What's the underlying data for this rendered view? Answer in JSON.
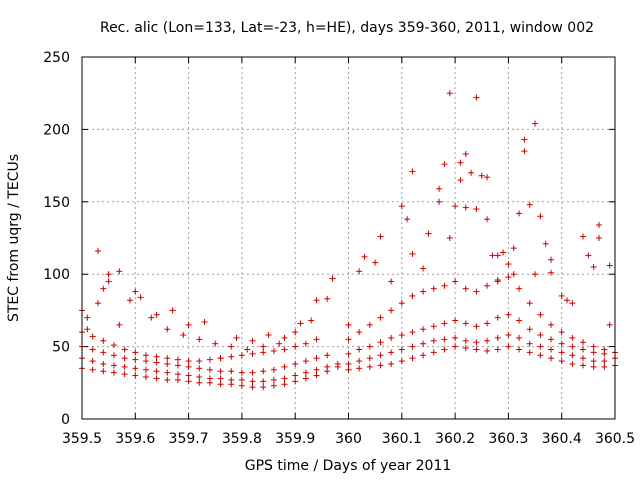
{
  "chart_data": {
    "type": "scatter",
    "title": "Rec. alic (Lon=133, Lat=-23, h=HE), days 359-360, 2011, window 002",
    "xlabel": "GPS time / Days of year 2011",
    "ylabel": "STEC from uqrg / TECUs",
    "xlim": [
      359.5,
      360.5
    ],
    "ylim": [
      0,
      250
    ],
    "xticks": [
      "359.5",
      "359.6",
      "359.7",
      "359.8",
      "359.9",
      "360",
      "360.1",
      "360.2",
      "360.3",
      "360.4",
      "360.5"
    ],
    "yticks": [
      "0",
      "50",
      "100",
      "150",
      "200",
      "250"
    ],
    "grid": true,
    "marker": "+",
    "color": "#cc0000",
    "series": [
      {
        "name": "s1",
        "x": [
          359.5,
          359.52,
          359.54,
          359.56,
          359.58,
          359.6,
          359.62,
          359.64,
          359.66,
          359.68,
          359.7,
          359.72,
          359.74,
          359.76,
          359.78,
          359.8,
          359.82,
          359.84,
          359.86,
          359.88,
          359.9,
          359.92,
          359.94,
          359.96,
          359.98
        ],
        "y": [
          35,
          34,
          33,
          32,
          31,
          30,
          29,
          28,
          27,
          27,
          26,
          25,
          25,
          24,
          24,
          23,
          22,
          22,
          23,
          24,
          26,
          28,
          30,
          33,
          36
        ]
      },
      {
        "name": "s2",
        "x": [
          359.5,
          359.52,
          359.54,
          359.56,
          359.58,
          359.6,
          359.62,
          359.64,
          359.66,
          359.68,
          359.7,
          359.72,
          359.74,
          359.76,
          359.78,
          359.8,
          359.82,
          359.84,
          359.86,
          359.88,
          359.9,
          359.92,
          359.94,
          359.96,
          359.98
        ],
        "y": [
          42,
          40,
          38,
          37,
          36,
          35,
          34,
          33,
          32,
          31,
          30,
          29,
          28,
          28,
          27,
          27,
          26,
          26,
          27,
          28,
          30,
          32,
          34,
          36,
          38
        ]
      },
      {
        "name": "s3",
        "x": [
          359.5,
          359.52,
          359.54,
          359.56,
          359.58,
          359.6,
          359.62,
          359.64,
          359.66,
          359.68,
          359.7,
          359.72,
          359.74,
          359.76,
          359.78,
          359.8,
          359.82,
          359.84,
          359.86,
          359.88,
          359.9,
          359.92,
          359.94,
          359.96
        ],
        "y": [
          50,
          48,
          46,
          44,
          42,
          41,
          40,
          39,
          38,
          37,
          36,
          35,
          34,
          33,
          33,
          32,
          32,
          33,
          34,
          36,
          38,
          40,
          42,
          44
        ]
      },
      {
        "name": "s4",
        "x": [
          359.5,
          359.52,
          359.54,
          359.56,
          359.58,
          359.6,
          359.62,
          359.64,
          359.66,
          359.68,
          359.7,
          359.72,
          359.74,
          359.76,
          359.78,
          359.8,
          359.82,
          359.84,
          359.86,
          359.88,
          359.9,
          359.92,
          359.94
        ],
        "y": [
          60,
          57,
          54,
          51,
          48,
          46,
          44,
          43,
          42,
          41,
          40,
          40,
          41,
          42,
          43,
          44,
          45,
          46,
          47,
          48,
          50,
          52,
          55
        ]
      },
      {
        "name": "s5",
        "x": [
          359.5,
          359.51,
          359.53,
          359.55,
          359.57,
          359.6,
          359.63,
          359.66,
          359.69,
          359.72,
          359.75,
          359.78,
          359.81,
          359.84,
          359.87,
          359.9,
          359.93,
          359.96
        ],
        "y": [
          75,
          70,
          116,
          95,
          102,
          88,
          70,
          62,
          58,
          55,
          52,
          50,
          48,
          50,
          52,
          60,
          68,
          83
        ]
      },
      {
        "name": "s6",
        "x": [
          359.51,
          359.53,
          359.54,
          359.55,
          359.57,
          359.59,
          359.61,
          359.64,
          359.67,
          359.7,
          359.73,
          359.76,
          359.79,
          359.82,
          359.85,
          359.88,
          359.91,
          359.94,
          359.97
        ],
        "y": [
          62,
          80,
          90,
          100,
          65,
          82,
          84,
          72,
          75,
          65,
          67,
          42,
          56,
          54,
          58,
          56,
          66,
          82,
          97
        ]
      },
      {
        "name": "s7",
        "x": [
          360.0,
          360.02,
          360.04,
          360.06,
          360.08,
          360.1,
          360.12,
          360.14,
          360.16,
          360.18,
          360.2,
          360.22,
          360.24,
          360.26,
          360.28,
          360.3,
          360.32,
          360.34,
          360.36,
          360.38,
          360.4,
          360.42,
          360.44,
          360.46,
          360.48,
          360.5
        ],
        "y": [
          34,
          35,
          36,
          37,
          38,
          40,
          42,
          44,
          46,
          48,
          50,
          49,
          48,
          47,
          48,
          50,
          48,
          46,
          44,
          42,
          40,
          38,
          37,
          36,
          36,
          37
        ]
      },
      {
        "name": "s8",
        "x": [
          360.0,
          360.02,
          360.04,
          360.06,
          360.08,
          360.1,
          360.12,
          360.14,
          360.16,
          360.18,
          360.2,
          360.22,
          360.24,
          360.26,
          360.28,
          360.3,
          360.32,
          360.34,
          360.36,
          360.38,
          360.4,
          360.42,
          360.44,
          360.46,
          360.48,
          360.5
        ],
        "y": [
          38,
          40,
          42,
          44,
          46,
          48,
          50,
          52,
          54,
          55,
          56,
          54,
          53,
          54,
          56,
          58,
          56,
          52,
          50,
          48,
          46,
          44,
          42,
          40,
          40,
          42
        ]
      },
      {
        "name": "s9",
        "x": [
          360.0,
          360.02,
          360.04,
          360.06,
          360.08,
          360.1,
          360.12,
          360.14,
          360.16,
          360.18,
          360.2,
          360.22,
          360.24,
          360.26,
          360.28,
          360.3,
          360.32,
          360.34,
          360.36,
          360.38,
          360.4,
          360.42,
          360.44,
          360.46,
          360.48,
          360.5
        ],
        "y": [
          45,
          48,
          50,
          53,
          56,
          58,
          60,
          62,
          64,
          66,
          68,
          66,
          64,
          66,
          70,
          72,
          68,
          62,
          58,
          55,
          52,
          50,
          48,
          46,
          45,
          46
        ]
      },
      {
        "name": "s10",
        "x": [
          360.0,
          360.02,
          360.04,
          360.06,
          360.08,
          360.1,
          360.12,
          360.14,
          360.16,
          360.18,
          360.2,
          360.22,
          360.24,
          360.26,
          360.28,
          360.3,
          360.32,
          360.34,
          360.36,
          360.38,
          360.4,
          360.42,
          360.44,
          360.46,
          360.48
        ],
        "y": [
          55,
          60,
          65,
          70,
          75,
          80,
          85,
          88,
          90,
          92,
          95,
          90,
          88,
          92,
          95,
          98,
          90,
          80,
          72,
          65,
          60,
          56,
          53,
          50,
          48
        ]
      },
      {
        "name": "s11",
        "x": [
          360.0,
          360.02,
          360.03,
          360.05,
          360.06,
          360.08,
          360.1,
          360.11,
          360.12,
          360.14,
          360.15,
          360.17,
          360.18,
          360.19,
          360.2,
          360.21,
          360.22,
          360.23,
          360.24,
          360.25,
          360.26,
          360.27,
          360.28,
          360.29,
          360.3,
          360.31,
          360.32,
          360.33,
          360.34,
          360.35,
          360.36,
          360.37,
          360.38,
          360.4,
          360.42,
          360.44,
          360.46,
          360.47,
          360.49
        ],
        "y": [
          65,
          102,
          112,
          108,
          126,
          95,
          147,
          138,
          114,
          104,
          128,
          159,
          176,
          125,
          147,
          177,
          183,
          170,
          145,
          168,
          138,
          113,
          96,
          115,
          107,
          118,
          142,
          193,
          148,
          100,
          140,
          121,
          101,
          85,
          80,
          126,
          105,
          125,
          106
        ]
      },
      {
        "name": "s12",
        "x": [
          360.12,
          360.17,
          360.19,
          360.21,
          360.22,
          360.24,
          360.26,
          360.28,
          360.31,
          360.33,
          360.35,
          360.38,
          360.41,
          360.45,
          360.47,
          360.49
        ],
        "y": [
          171,
          150,
          225,
          165,
          146,
          222,
          167,
          113,
          100,
          185,
          204,
          110,
          82,
          113,
          134,
          65
        ]
      }
    ]
  }
}
